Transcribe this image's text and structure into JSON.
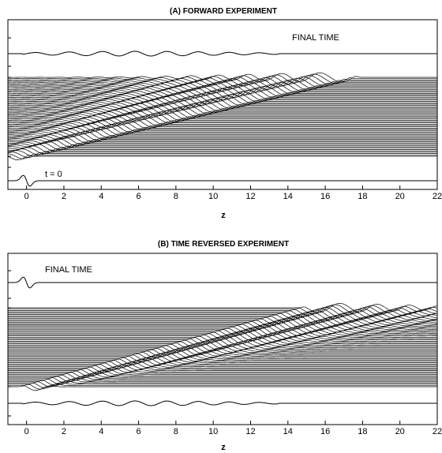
{
  "chart_data": [
    {
      "type": "line",
      "title": "(A) FORWARD  EXPERIMENT",
      "xlabel": "z",
      "ylabel": "",
      "xlim": [
        -1,
        22
      ],
      "xticks": [
        0,
        2,
        4,
        6,
        8,
        10,
        12,
        14,
        16,
        18,
        20,
        22
      ],
      "yticks_shown": false,
      "grid": false,
      "annotations": [
        "FINAL TIME",
        "t = 0"
      ],
      "traces": {
        "initial": {
          "label": "t = 0",
          "pulse_center_z": 0.0
        },
        "intermediate_count": 60,
        "front_start_z": 0.0,
        "front_end_z": 17.5,
        "final": {
          "label": "FINAL TIME",
          "oscillation_z_range": [
            0.0,
            12.0
          ]
        }
      }
    },
    {
      "type": "line",
      "title": "(B) TIME  REVERSED  EXPERIMENT",
      "xlabel": "z",
      "ylabel": "",
      "xlim": [
        -1,
        22
      ],
      "xticks": [
        0,
        2,
        4,
        6,
        8,
        10,
        12,
        14,
        16,
        18,
        20,
        22
      ],
      "yticks_shown": false,
      "grid": false,
      "annotations": [
        "FINAL TIME"
      ],
      "traces": {
        "initial": {
          "oscillation_z_range": [
            0.0,
            12.0
          ]
        },
        "intermediate_count": 60,
        "front_start_z": 15.0,
        "front_end_z": 0.0,
        "final": {
          "label": "FINAL TIME",
          "pulse_center_z": 0.0
        }
      }
    }
  ]
}
